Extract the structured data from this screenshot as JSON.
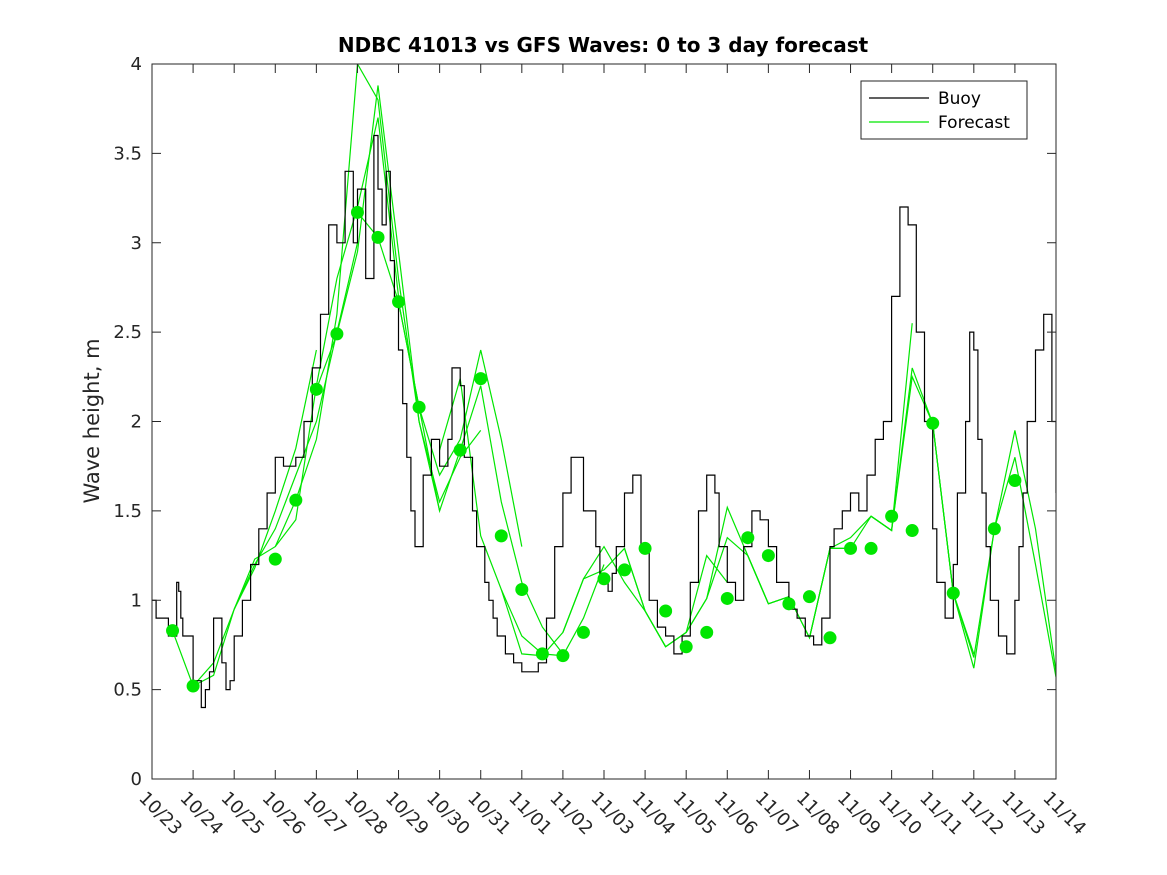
{
  "chart_data": {
    "type": "line",
    "title": "NDBC 41013 vs GFS Waves: 0 to 3 day forecast",
    "xlabel": "",
    "ylabel": "Wave height, m",
    "xlim": [
      0,
      22
    ],
    "ylim": [
      0,
      4
    ],
    "yticks": [
      0,
      0.5,
      1,
      1.5,
      2,
      2.5,
      3,
      3.5,
      4
    ],
    "ytick_labels": [
      "0",
      "0.5",
      "1",
      "1.5",
      "2",
      "2.5",
      "3",
      "3.5",
      "4"
    ],
    "xtick_labels": [
      "10/23",
      "10/24",
      "10/25",
      "10/26",
      "10/27",
      "10/28",
      "10/29",
      "10/30",
      "10/31",
      "11/01",
      "11/02",
      "11/03",
      "11/04",
      "11/05",
      "11/06",
      "11/07",
      "11/08",
      "11/09",
      "11/10",
      "11/11",
      "11/12",
      "11/13",
      "11/14"
    ],
    "legend": {
      "location": "top-right",
      "entries": [
        {
          "label": "Buoy",
          "color": "#000000"
        },
        {
          "label": "Forecast",
          "color": "#00e600"
        }
      ]
    },
    "buoy": {
      "name": "Buoy",
      "color": "#000000",
      "x": [
        0,
        0.1,
        0.4,
        0.6,
        0.65,
        0.7,
        0.75,
        1.0,
        1.2,
        1.3,
        1.4,
        1.5,
        1.7,
        1.8,
        1.9,
        2.0,
        2.2,
        2.4,
        2.6,
        2.8,
        3.0,
        3.2,
        3.5,
        3.7,
        3.9,
        4.1,
        4.3,
        4.5,
        4.7,
        4.9,
        5.0,
        5.2,
        5.4,
        5.5,
        5.6,
        5.7,
        5.8,
        5.9,
        6.0,
        6.1,
        6.2,
        6.3,
        6.4,
        6.6,
        6.8,
        7.0,
        7.2,
        7.3,
        7.5,
        7.6,
        7.8,
        7.9,
        8.1,
        8.2,
        8.3,
        8.4,
        8.6,
        8.8,
        9.0,
        9.2,
        9.4,
        9.6,
        9.8,
        10.0,
        10.2,
        10.5,
        10.8,
        10.9,
        11.1,
        11.2,
        11.3,
        11.5,
        11.7,
        11.9,
        12.1,
        12.3,
        12.5,
        12.7,
        12.9,
        13.1,
        13.3,
        13.5,
        13.7,
        13.8,
        14.0,
        14.2,
        14.4,
        14.6,
        14.8,
        15.0,
        15.2,
        15.5,
        15.7,
        15.9,
        16.1,
        16.3,
        16.5,
        16.6,
        16.8,
        17.0,
        17.2,
        17.4,
        17.6,
        17.8,
        18.0,
        18.2,
        18.4,
        18.6,
        18.8,
        19.0,
        19.1,
        19.3,
        19.5,
        19.6,
        19.8,
        19.9,
        20.0,
        20.1,
        20.2,
        20.3,
        20.4,
        20.6,
        20.8,
        21.0,
        21.1,
        21.2,
        21.3,
        21.5,
        21.7,
        21.9,
        22.0
      ],
      "values": [
        1.0,
        0.9,
        0.8,
        1.1,
        1.05,
        0.9,
        0.8,
        0.55,
        0.4,
        0.5,
        0.6,
        0.9,
        0.65,
        0.5,
        0.55,
        0.8,
        1.0,
        1.2,
        1.4,
        1.6,
        1.8,
        1.75,
        1.8,
        2.0,
        2.3,
        2.6,
        3.1,
        3.0,
        3.4,
        3.0,
        3.3,
        2.8,
        3.6,
        3.3,
        3.1,
        3.4,
        2.9,
        2.7,
        2.4,
        2.1,
        1.8,
        1.5,
        1.3,
        1.7,
        1.9,
        1.75,
        1.9,
        2.3,
        2.2,
        1.8,
        1.5,
        1.3,
        1.1,
        1.0,
        0.9,
        0.8,
        0.7,
        0.65,
        0.6,
        0.6,
        0.65,
        0.9,
        1.3,
        1.6,
        1.8,
        1.5,
        1.3,
        1.1,
        1.05,
        1.15,
        1.3,
        1.6,
        1.7,
        1.3,
        1.0,
        0.85,
        0.8,
        0.7,
        0.8,
        1.1,
        1.5,
        1.7,
        1.6,
        1.3,
        1.1,
        1.0,
        1.3,
        1.5,
        1.45,
        1.3,
        1.1,
        0.95,
        0.9,
        0.8,
        0.75,
        0.9,
        1.3,
        1.4,
        1.5,
        1.6,
        1.5,
        1.7,
        1.9,
        2.0,
        2.7,
        3.2,
        3.1,
        2.5,
        2.0,
        1.4,
        1.1,
        0.9,
        1.2,
        1.6,
        2.0,
        2.5,
        2.4,
        1.9,
        1.6,
        1.3,
        1.0,
        0.8,
        0.7,
        1.0,
        1.3,
        1.6,
        2.0,
        2.4,
        2.6,
        2.0,
        1.6
      ],
      "step": true
    },
    "forecast": {
      "name": "Forecast",
      "color": "#00e600",
      "runs": [
        {
          "x": [
            0.5,
            1.0,
            1.5,
            2.0,
            2.5,
            3.0,
            3.5,
            4.0
          ],
          "values": [
            0.83,
            0.52,
            0.65,
            0.95,
            1.18,
            1.5,
            1.85,
            2.4
          ]
        },
        {
          "x": [
            1.0,
            1.5,
            2.0,
            2.5,
            3.0,
            3.5,
            4.0,
            4.5,
            5.0
          ],
          "values": [
            0.52,
            0.58,
            0.95,
            1.2,
            1.4,
            1.7,
            2.0,
            2.5,
            3.0
          ]
        },
        {
          "x": [
            2.0,
            2.5,
            3.0,
            3.5,
            4.0,
            4.5,
            5.0,
            5.5,
            6.0
          ],
          "values": [
            0.95,
            1.23,
            1.3,
            1.45,
            2.2,
            2.8,
            3.2,
            3.7,
            2.7
          ]
        },
        {
          "x": [
            3.0,
            3.5,
            4.0,
            4.5,
            5.0,
            5.5,
            6.0,
            6.5,
            7.0
          ],
          "values": [
            1.3,
            1.56,
            1.9,
            2.6,
            4.0,
            3.8,
            2.8,
            2.0,
            1.5
          ]
        },
        {
          "x": [
            4.0,
            4.5,
            5.0,
            5.5,
            6.0,
            6.5,
            7.0,
            7.5,
            8.0
          ],
          "values": [
            2.18,
            2.49,
            2.95,
            3.88,
            2.95,
            2.0,
            1.55,
            1.8,
            1.95
          ]
        },
        {
          "x": [
            5.0,
            5.5,
            6.0,
            6.5,
            7.0,
            7.5,
            8.0,
            8.5,
            9.0
          ],
          "values": [
            3.17,
            3.03,
            2.67,
            2.08,
            1.7,
            1.9,
            2.4,
            1.9,
            1.3
          ]
        },
        {
          "x": [
            6.0,
            6.5,
            7.0,
            7.5,
            8.0,
            8.5,
            9.0,
            9.5,
            10.0
          ],
          "values": [
            2.67,
            2.08,
            1.5,
            1.84,
            2.2,
            1.55,
            1.1,
            0.85,
            0.7
          ]
        },
        {
          "x": [
            7.0,
            7.5,
            8.0,
            8.5,
            9.0,
            9.5,
            10.0,
            10.5,
            11.0
          ],
          "values": [
            1.84,
            2.24,
            1.36,
            1.06,
            0.8,
            0.7,
            0.69,
            0.9,
            1.2
          ]
        },
        {
          "x": [
            8.5,
            9.0,
            9.5,
            10.0,
            10.5,
            11.0,
            11.5,
            12.0,
            12.5
          ],
          "values": [
            1.06,
            0.7,
            0.69,
            0.82,
            1.12,
            1.17,
            1.29,
            0.94,
            0.74
          ]
        },
        {
          "x": [
            10.0,
            10.5,
            11.0,
            11.5,
            12.0,
            12.5,
            13.0,
            13.5,
            14.0
          ],
          "values": [
            0.82,
            1.12,
            1.3,
            1.1,
            0.94,
            0.74,
            0.82,
            1.25,
            1.1
          ]
        },
        {
          "x": [
            11.5,
            12.0,
            12.5,
            13.0,
            13.5,
            14.0,
            14.5,
            15.0,
            15.5
          ],
          "values": [
            1.29,
            0.94,
            0.74,
            0.82,
            1.01,
            1.35,
            1.25,
            0.98,
            1.02
          ]
        },
        {
          "x": [
            13.0,
            13.5,
            14.0,
            14.5,
            15.0,
            15.5,
            16.0,
            16.5,
            17.0
          ],
          "values": [
            0.82,
            1.01,
            1.52,
            1.25,
            0.98,
            1.02,
            0.79,
            1.29,
            1.29
          ]
        },
        {
          "x": [
            14.5,
            15.0,
            15.5,
            16.0,
            16.5,
            17.0,
            17.5,
            18.0,
            18.5
          ],
          "values": [
            1.25,
            0.98,
            1.02,
            0.79,
            1.29,
            1.29,
            1.47,
            1.39,
            2.55
          ]
        },
        {
          "x": [
            16.0,
            16.5,
            17.0,
            17.5,
            18.0,
            18.5,
            19.0,
            19.5,
            20.0
          ],
          "values": [
            0.79,
            1.29,
            1.35,
            1.47,
            1.39,
            2.3,
            1.99,
            1.04,
            0.7
          ]
        },
        {
          "x": [
            17.5,
            18.0,
            18.5,
            19.0,
            19.5,
            20.0,
            20.5,
            21.0,
            21.5,
            22.0
          ],
          "values": [
            1.47,
            1.39,
            2.25,
            1.99,
            1.04,
            0.68,
            1.4,
            1.95,
            1.4,
            0.6
          ]
        },
        {
          "x": [
            19.0,
            19.5,
            20.0,
            20.5,
            21.0,
            21.5,
            22.0
          ],
          "values": [
            1.99,
            1.04,
            0.62,
            1.4,
            1.8,
            1.2,
            0.57
          ]
        }
      ],
      "markers": {
        "x": [
          0.5,
          1.0,
          3.0,
          3.5,
          4.0,
          4.5,
          5.0,
          5.5,
          6.0,
          6.5,
          7.5,
          8.0,
          8.5,
          9.0,
          9.5,
          10.0,
          10.5,
          11.0,
          11.5,
          12.0,
          12.5,
          13.0,
          13.5,
          14.0,
          14.5,
          15.0,
          15.5,
          16.0,
          16.5,
          17.0,
          17.5,
          18.0,
          18.5,
          19.0,
          19.5,
          20.5,
          21.0
        ],
        "values": [
          0.83,
          0.52,
          1.23,
          1.56,
          2.18,
          2.49,
          3.17,
          3.03,
          2.67,
          2.08,
          1.84,
          2.24,
          1.36,
          1.06,
          0.7,
          0.69,
          0.82,
          1.12,
          1.17,
          1.29,
          0.94,
          0.74,
          0.82,
          1.01,
          1.35,
          1.25,
          0.98,
          1.02,
          0.79,
          1.29,
          1.29,
          1.47,
          1.39,
          1.99,
          1.04,
          1.4,
          1.67
        ]
      }
    }
  }
}
